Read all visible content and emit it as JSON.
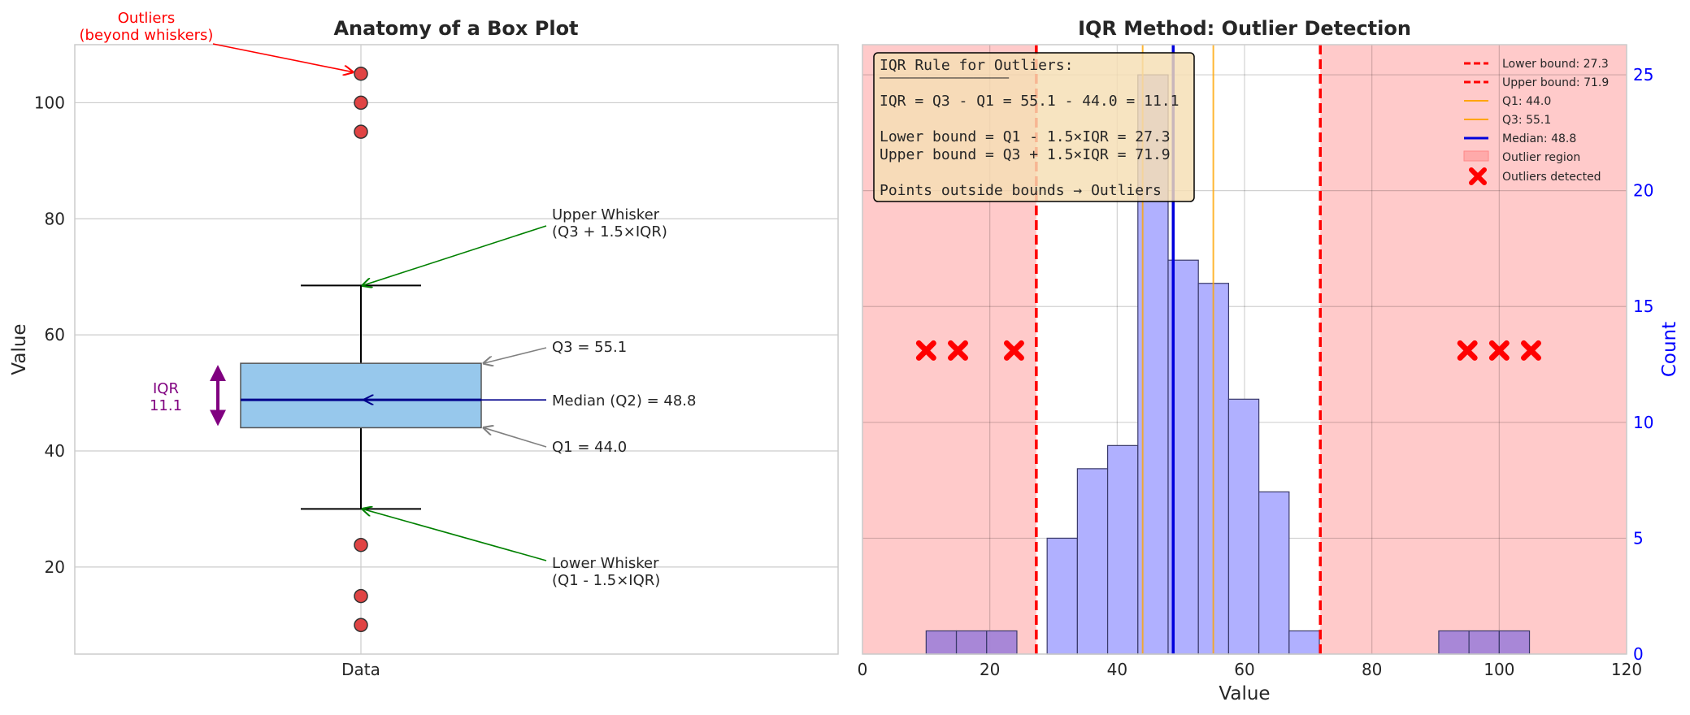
{
  "chart_data": [
    {
      "type": "box",
      "title": "Anatomy of a Box Plot",
      "xlabel": "",
      "ylabel": "Value",
      "category": "Data",
      "ylim": [
        5,
        110
      ],
      "yticks": [
        20,
        40,
        60,
        80,
        100
      ],
      "q1": 44.0,
      "median": 48.8,
      "q3": 55.1,
      "whisker_low": 30.0,
      "whisker_high": 68.5,
      "outliers": [
        105,
        100,
        95,
        23.8,
        15,
        10
      ],
      "colors": {
        "box": "#97c8ec",
        "median": "#00008b",
        "outlier": "#e04444",
        "iqr": "#800080"
      },
      "annotations": {
        "outliers": [
          "Outliers",
          "(beyond whiskers)"
        ],
        "upper_whisker": [
          "Upper Whisker",
          "(Q3 + 1.5×IQR)"
        ],
        "q3": "Q3 = 55.1",
        "median": "Median (Q2) = 48.8",
        "q1": "Q1 = 44.0",
        "lower_whisker": [
          "Lower Whisker",
          "(Q1 - 1.5×IQR)"
        ],
        "iqr": [
          "IQR",
          "11.1"
        ]
      }
    },
    {
      "type": "histogram",
      "title": "IQR Method: Outlier Detection",
      "xlabel": "Value",
      "ylabel": "Count",
      "xlim": [
        0,
        120
      ],
      "ylim": [
        0,
        26.3
      ],
      "xticks": [
        0,
        20,
        40,
        60,
        80,
        100,
        120
      ],
      "yticks": [
        0,
        5,
        10,
        15,
        20,
        25
      ],
      "bin_width": 4.75,
      "bins": [
        {
          "start": 10.0,
          "count": 1,
          "outlier": true
        },
        {
          "start": 14.75,
          "count": 1,
          "outlier": true
        },
        {
          "start": 19.5,
          "count": 1,
          "outlier": true
        },
        {
          "start": 29.0,
          "count": 5
        },
        {
          "start": 33.75,
          "count": 8
        },
        {
          "start": 38.5,
          "count": 9
        },
        {
          "start": 43.25,
          "count": 25
        },
        {
          "start": 48.0,
          "count": 17
        },
        {
          "start": 52.75,
          "count": 16
        },
        {
          "start": 57.5,
          "count": 11
        },
        {
          "start": 62.25,
          "count": 7
        },
        {
          "start": 67.0,
          "count": 1
        },
        {
          "start": 90.5,
          "count": 1,
          "outlier": true
        },
        {
          "start": 95.25,
          "count": 1,
          "outlier": true
        },
        {
          "start": 100.0,
          "count": 1,
          "outlier": true
        }
      ],
      "lower_bound": 27.3,
      "upper_bound": 71.9,
      "q1": 44.0,
      "q3": 55.1,
      "median": 48.8,
      "outlier_points": [
        10,
        15,
        23.8,
        95,
        100,
        105
      ],
      "outlier_marker_count": 13.1,
      "colors": {
        "bars": "#b0b0ff",
        "bounds": "#ff0000",
        "quartiles": "#ffa500",
        "median": "#0000dd",
        "region": "#ffcaca",
        "count_axis": "#0000ff"
      },
      "legend": {
        "position": "upper right",
        "entries": [
          "Lower bound: 27.3",
          "Upper bound: 71.9",
          "Q1: 44.0",
          "Q3: 55.1",
          "Median: 48.8",
          "Outlier region",
          "Outliers detected"
        ]
      },
      "textbox": [
        "IQR Rule for Outliers:",
        "──────────────────────",
        "IQR = Q3 - Q1 = 55.1 - 44.0 = 11.1",
        "Lower bound = Q1 - 1.5×IQR = 27.3",
        "Upper bound = Q3 + 1.5×IQR = 71.9",
        "Points outside bounds → Outliers"
      ]
    }
  ]
}
